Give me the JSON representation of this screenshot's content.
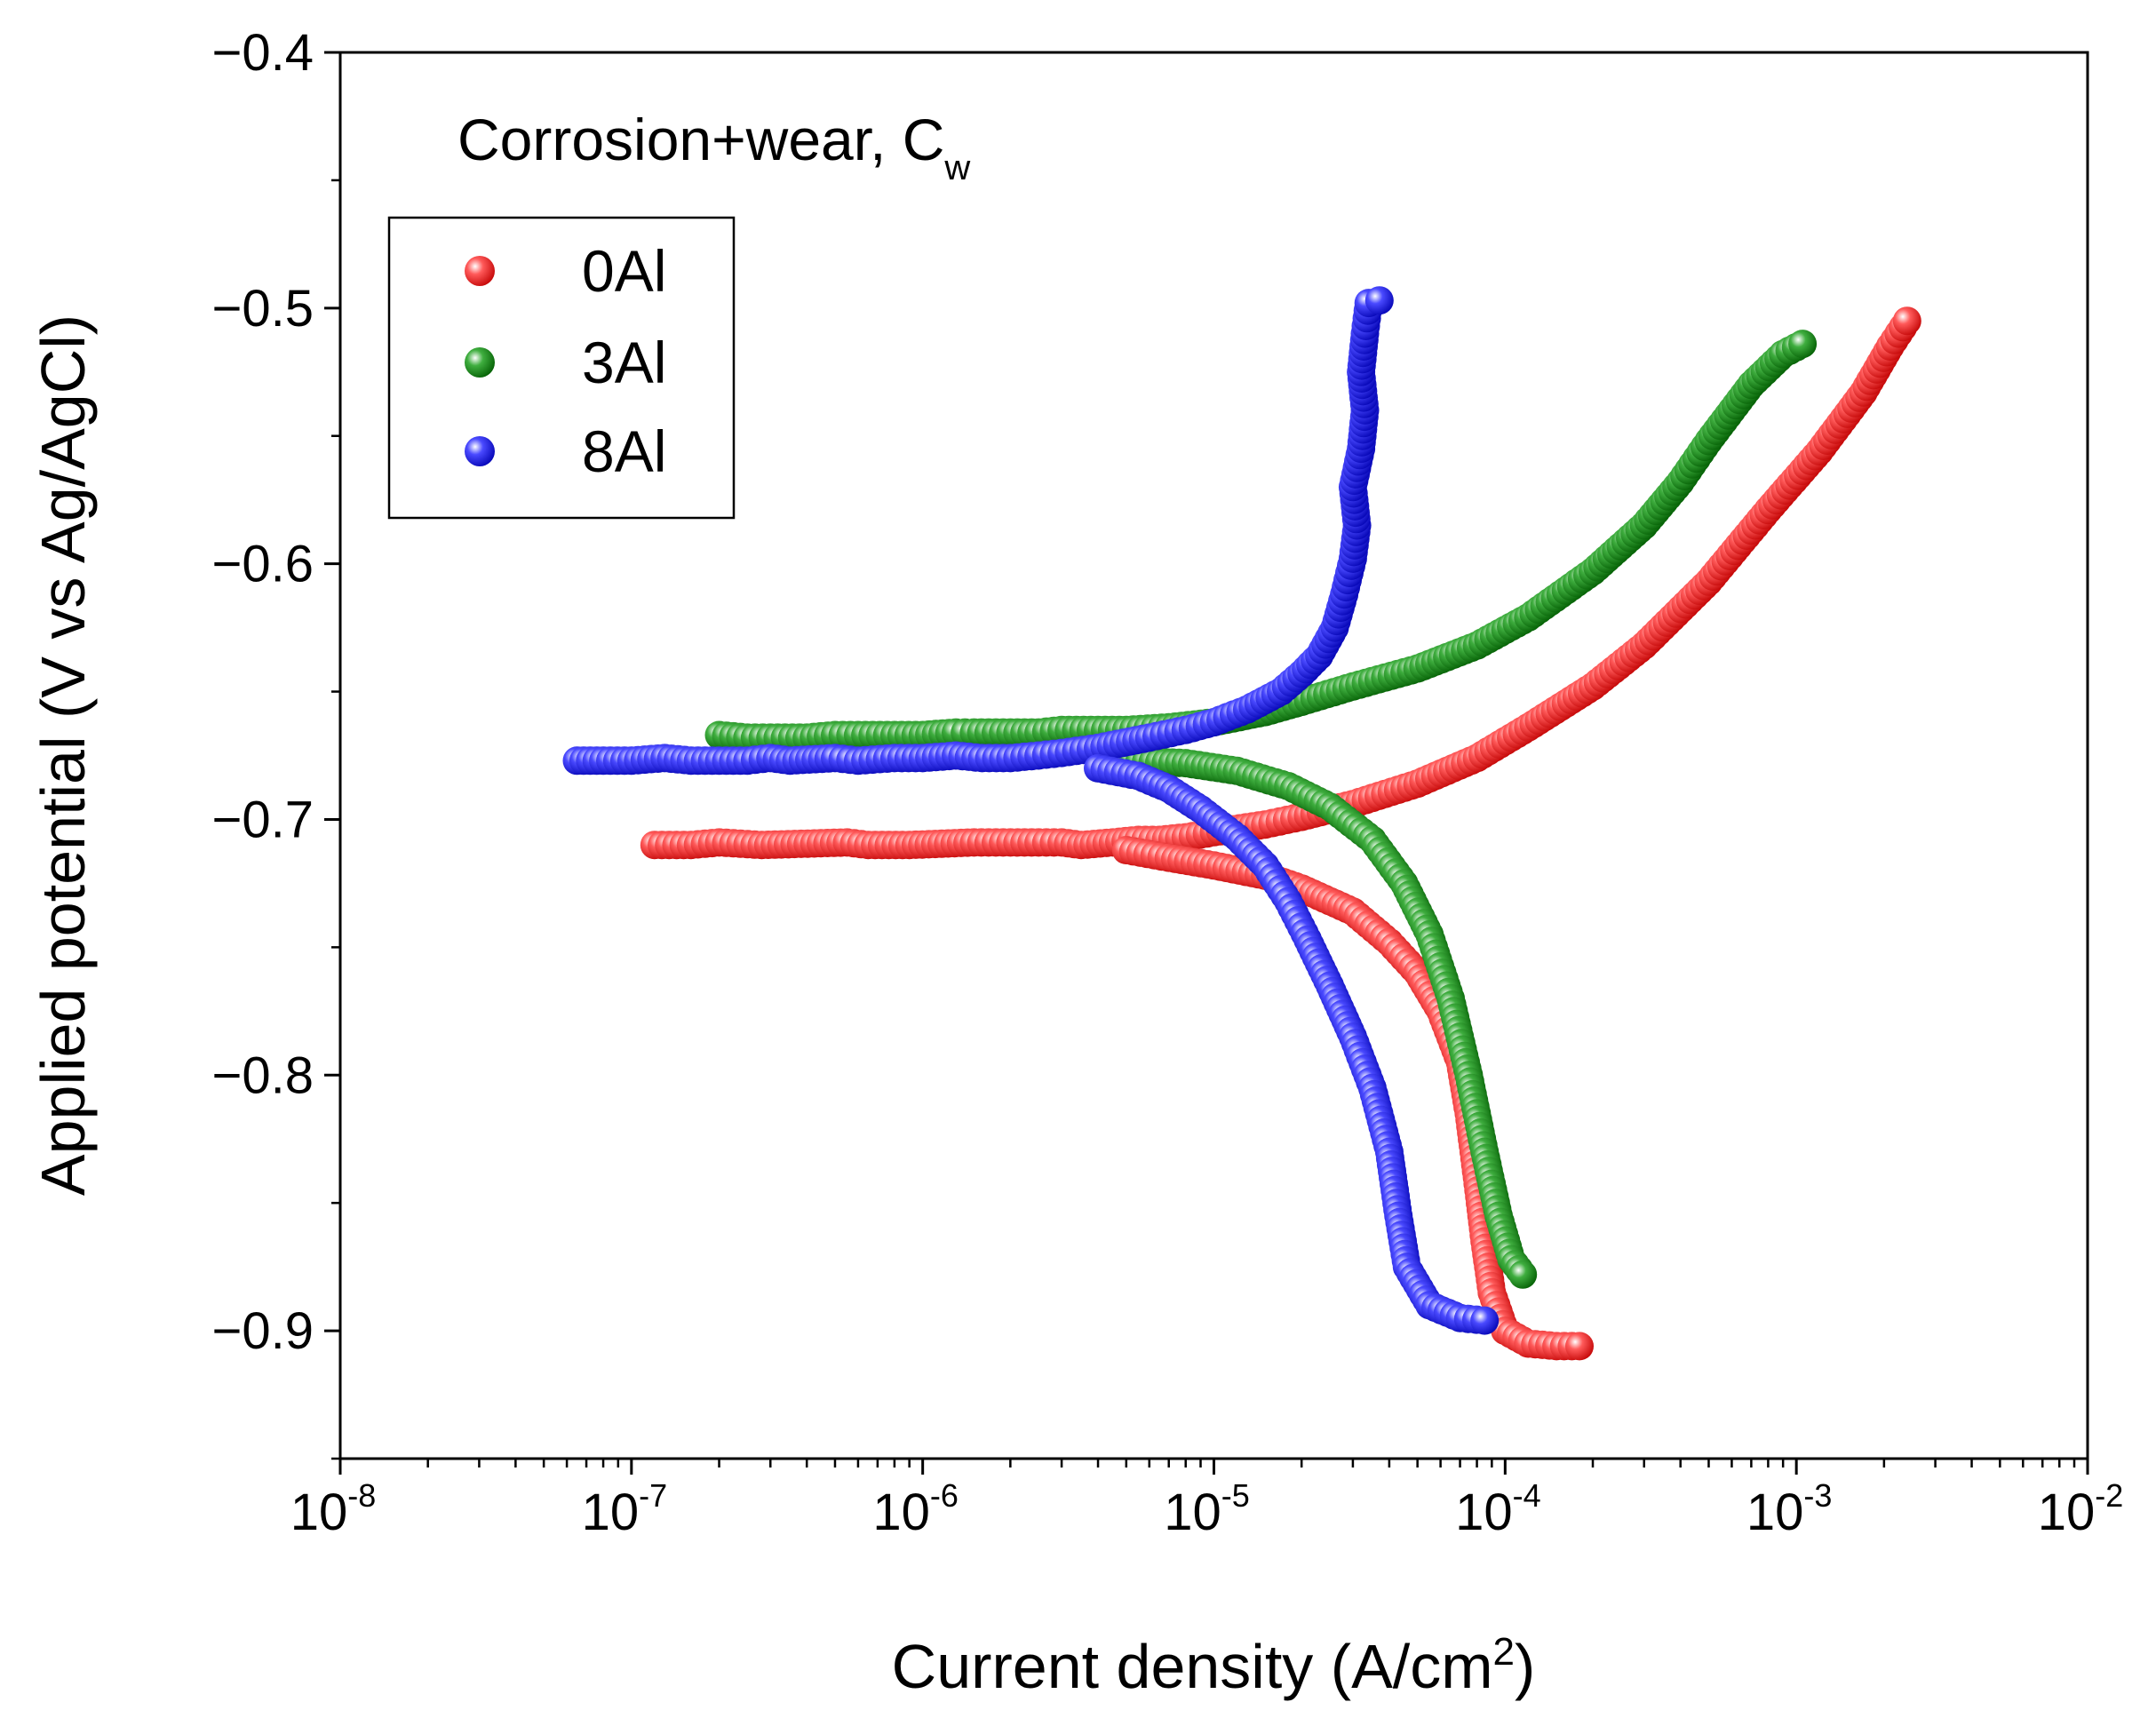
{
  "chart_data": {
    "type": "scatter",
    "title": "",
    "annotation": {
      "text": "Corrosion+wear, C",
      "subscript": "w"
    },
    "xlabel": {
      "text": "Current density (A/cm",
      "superscript": "2",
      "suffix": ")"
    },
    "ylabel": "Applied potential (V vs Ag/AgCl)",
    "xscale": "log",
    "xlim": [
      1e-08,
      0.01
    ],
    "ylim": [
      -0.95,
      -0.4
    ],
    "x_ticks": [
      {
        "base": "10",
        "exp": "-8"
      },
      {
        "base": "10",
        "exp": "-7"
      },
      {
        "base": "10",
        "exp": "-6"
      },
      {
        "base": "10",
        "exp": "-5"
      },
      {
        "base": "10",
        "exp": "-4"
      },
      {
        "base": "10",
        "exp": "-3"
      },
      {
        "base": "10",
        "exp": "-2"
      }
    ],
    "y_ticks": [
      {
        "value": -0.4,
        "label": "−0.4"
      },
      {
        "value": -0.5,
        "label": "−0.5"
      },
      {
        "value": -0.6,
        "label": "−0.6"
      },
      {
        "value": -0.7,
        "label": "−0.7"
      },
      {
        "value": -0.8,
        "label": "−0.8"
      },
      {
        "value": -0.9,
        "label": "−0.9"
      }
    ],
    "legend_position": "upper-left",
    "grid": false,
    "series": [
      {
        "name": "0Al",
        "color": "#ff0000",
        "points": [
          [
            1.2e-07,
            -0.71
          ],
          [
            1.6e-07,
            -0.71
          ],
          [
            2e-07,
            -0.709
          ],
          [
            2.8e-07,
            -0.71
          ],
          [
            5.5e-07,
            -0.709
          ],
          [
            6.5e-07,
            -0.71
          ],
          [
            9e-07,
            -0.71
          ],
          [
            1.5e-06,
            -0.709
          ],
          [
            2e-06,
            -0.709
          ],
          [
            2.5e-06,
            -0.709
          ],
          [
            3e-06,
            -0.709
          ],
          [
            3.5e-06,
            -0.71
          ],
          [
            4.5e-06,
            -0.709
          ],
          [
            5.5e-06,
            -0.708
          ],
          [
            6.5e-06,
            -0.708
          ],
          [
            8e-06,
            -0.707
          ],
          [
            1e-05,
            -0.705
          ],
          [
            1.5e-05,
            -0.702
          ],
          [
            2e-05,
            -0.699
          ],
          [
            3e-05,
            -0.694
          ],
          [
            5e-05,
            -0.686
          ],
          [
            8e-05,
            -0.676
          ],
          [
            0.00012,
            -0.664
          ],
          [
            0.0002,
            -0.648
          ],
          [
            0.0003,
            -0.632
          ],
          [
            0.0005,
            -0.607
          ],
          [
            0.0008,
            -0.579
          ],
          [
            0.0012,
            -0.556
          ],
          [
            0.0017,
            -0.533
          ],
          [
            0.0021,
            -0.515
          ],
          [
            0.0024,
            -0.505
          ],
          [
            5e-06,
            -0.712
          ],
          [
            7e-06,
            -0.715
          ],
          [
            1e-05,
            -0.718
          ],
          [
            1.5e-05,
            -0.722
          ],
          [
            2e-05,
            -0.727
          ],
          [
            3e-05,
            -0.736
          ],
          [
            4e-05,
            -0.748
          ],
          [
            5e-05,
            -0.76
          ],
          [
            6e-05,
            -0.775
          ],
          [
            7e-05,
            -0.795
          ],
          [
            7.5e-05,
            -0.815
          ],
          [
            8e-05,
            -0.84
          ],
          [
            8.5e-05,
            -0.865
          ],
          [
            9e-05,
            -0.885
          ],
          [
            0.0001,
            -0.9
          ],
          [
            0.00012,
            -0.905
          ],
          [
            0.00015,
            -0.906
          ],
          [
            0.00018,
            -0.906
          ]
        ]
      },
      {
        "name": "3Al",
        "color": "#008000",
        "points": [
          [
            2e-07,
            -0.667
          ],
          [
            2.5e-07,
            -0.668
          ],
          [
            3e-07,
            -0.668
          ],
          [
            4e-07,
            -0.668
          ],
          [
            5e-07,
            -0.667
          ],
          [
            6e-07,
            -0.667
          ],
          [
            8e-07,
            -0.667
          ],
          [
            1e-06,
            -0.667
          ],
          [
            1.3e-06,
            -0.666
          ],
          [
            1.5e-06,
            -0.666
          ],
          [
            2e-06,
            -0.666
          ],
          [
            2.5e-06,
            -0.666
          ],
          [
            3e-06,
            -0.665
          ],
          [
            4e-06,
            -0.665
          ],
          [
            5e-06,
            -0.665
          ],
          [
            7e-06,
            -0.664
          ],
          [
            1e-05,
            -0.662
          ],
          [
            1.5e-05,
            -0.658
          ],
          [
            2e-05,
            -0.654
          ],
          [
            3e-05,
            -0.648
          ],
          [
            5e-05,
            -0.641
          ],
          [
            8e-05,
            -0.632
          ],
          [
            0.00012,
            -0.621
          ],
          [
            0.0002,
            -0.603
          ],
          [
            0.0003,
            -0.585
          ],
          [
            0.0004,
            -0.568
          ],
          [
            0.0005,
            -0.552
          ],
          [
            0.0007,
            -0.53
          ],
          [
            0.0009,
            -0.518
          ],
          [
            0.00105,
            -0.514
          ],
          [
            5e-06,
            -0.677
          ],
          [
            8e-06,
            -0.678
          ],
          [
            1.2e-05,
            -0.681
          ],
          [
            1.8e-05,
            -0.687
          ],
          [
            2.5e-05,
            -0.695
          ],
          [
            3.5e-05,
            -0.708
          ],
          [
            4.5e-05,
            -0.725
          ],
          [
            5.5e-05,
            -0.745
          ],
          [
            6.5e-05,
            -0.77
          ],
          [
            7.5e-05,
            -0.8
          ],
          [
            8.5e-05,
            -0.83
          ],
          [
            9.5e-05,
            -0.855
          ],
          [
            0.000105,
            -0.872
          ],
          [
            0.000115,
            -0.878
          ]
        ]
      },
      {
        "name": "8Al",
        "color": "#0000ff",
        "points": [
          [
            6.5e-08,
            -0.677
          ],
          [
            8e-08,
            -0.677
          ],
          [
            1e-07,
            -0.677
          ],
          [
            1.3e-07,
            -0.676
          ],
          [
            1.6e-07,
            -0.677
          ],
          [
            2e-07,
            -0.677
          ],
          [
            2.5e-07,
            -0.677
          ],
          [
            3e-07,
            -0.676
          ],
          [
            3.5e-07,
            -0.677
          ],
          [
            5e-07,
            -0.676
          ],
          [
            6e-07,
            -0.677
          ],
          [
            8e-07,
            -0.676
          ],
          [
            1e-06,
            -0.676
          ],
          [
            1.3e-06,
            -0.675
          ],
          [
            1.6e-06,
            -0.676
          ],
          [
            2e-06,
            -0.676
          ],
          [
            2.5e-06,
            -0.675
          ],
          [
            3e-06,
            -0.674
          ],
          [
            4e-06,
            -0.672
          ],
          [
            6e-06,
            -0.668
          ],
          [
            8e-06,
            -0.665
          ],
          [
            1e-05,
            -0.662
          ],
          [
            1.3e-05,
            -0.657
          ],
          [
            1.7e-05,
            -0.65
          ],
          [
            2e-05,
            -0.643
          ],
          [
            2.3e-05,
            -0.636
          ],
          [
            2.6e-05,
            -0.625
          ],
          [
            2.8e-05,
            -0.612
          ],
          [
            3e-05,
            -0.598
          ],
          [
            3.1e-05,
            -0.585
          ],
          [
            3e-05,
            -0.57
          ],
          [
            3.2e-05,
            -0.555
          ],
          [
            3.3e-05,
            -0.54
          ],
          [
            3.2e-05,
            -0.525
          ],
          [
            3.3e-05,
            -0.51
          ],
          [
            3.4e-05,
            -0.498
          ],
          [
            3.7e-05,
            -0.497
          ],
          [
            4e-06,
            -0.68
          ],
          [
            5.5e-06,
            -0.683
          ],
          [
            7e-06,
            -0.688
          ],
          [
            9e-06,
            -0.696
          ],
          [
            1.2e-05,
            -0.707
          ],
          [
            1.5e-05,
            -0.718
          ],
          [
            1.8e-05,
            -0.732
          ],
          [
            2.1e-05,
            -0.747
          ],
          [
            2.5e-05,
            -0.765
          ],
          [
            3e-05,
            -0.785
          ],
          [
            3.5e-05,
            -0.805
          ],
          [
            4e-05,
            -0.83
          ],
          [
            4.3e-05,
            -0.855
          ],
          [
            4.6e-05,
            -0.875
          ],
          [
            5.5e-05,
            -0.89
          ],
          [
            7e-05,
            -0.895
          ],
          [
            8.5e-05,
            -0.896
          ]
        ]
      }
    ]
  }
}
